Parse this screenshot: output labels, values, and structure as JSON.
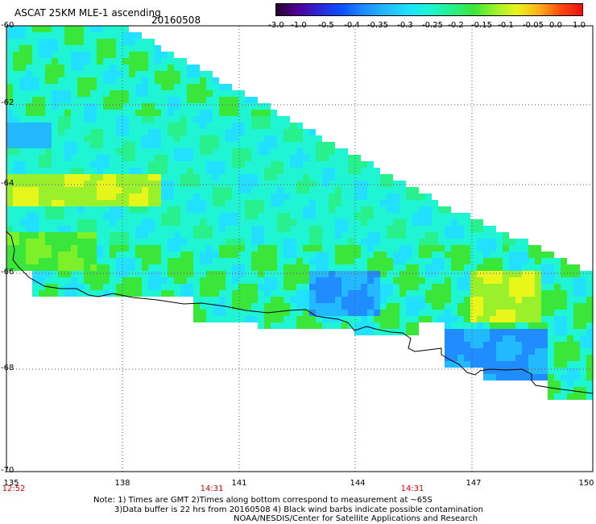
{
  "header": {
    "title": "ASCAT 25KM MLE-1 ascending",
    "date": "20160508"
  },
  "colorbar": {
    "labels": [
      "-3.0",
      "-1.0",
      "-0.5",
      "-0.4",
      "-0.35",
      "-0.3",
      "-0.25",
      "-0.2",
      "-0.15",
      "-0.1",
      "-0.05",
      "0.0",
      "1.0"
    ],
    "colors": [
      "#2a0030",
      "#50009a",
      "#2a2ad6",
      "#0a50ff",
      "#1f8cff",
      "#22b9ff",
      "#1fe0ff",
      "#1ff5d2",
      "#27f08c",
      "#3ae63a",
      "#9af02a",
      "#eaf51a",
      "#ffb01a",
      "#ff4a10",
      "#e61212"
    ]
  },
  "axes": {
    "lat_labels": [
      "-60",
      "-62",
      "-64",
      "-66",
      "-68",
      "-70"
    ],
    "lon_labels": [
      "135",
      "138",
      "141",
      "144",
      "147",
      "150"
    ],
    "time_labels": [
      "12:52",
      "14:31",
      "14:31"
    ]
  },
  "footer": {
    "note_line1": "Note: 1) Times are GMT 2)Times along bottom correspond to measurement at ~65S",
    "note_line2": "3)Data buffer is 22 hrs from 20160508 4) Black wind barbs indicate possible contamination",
    "note_line3": "NOAA/NESDIS/Center for Satellite Applications and Research"
  }
}
